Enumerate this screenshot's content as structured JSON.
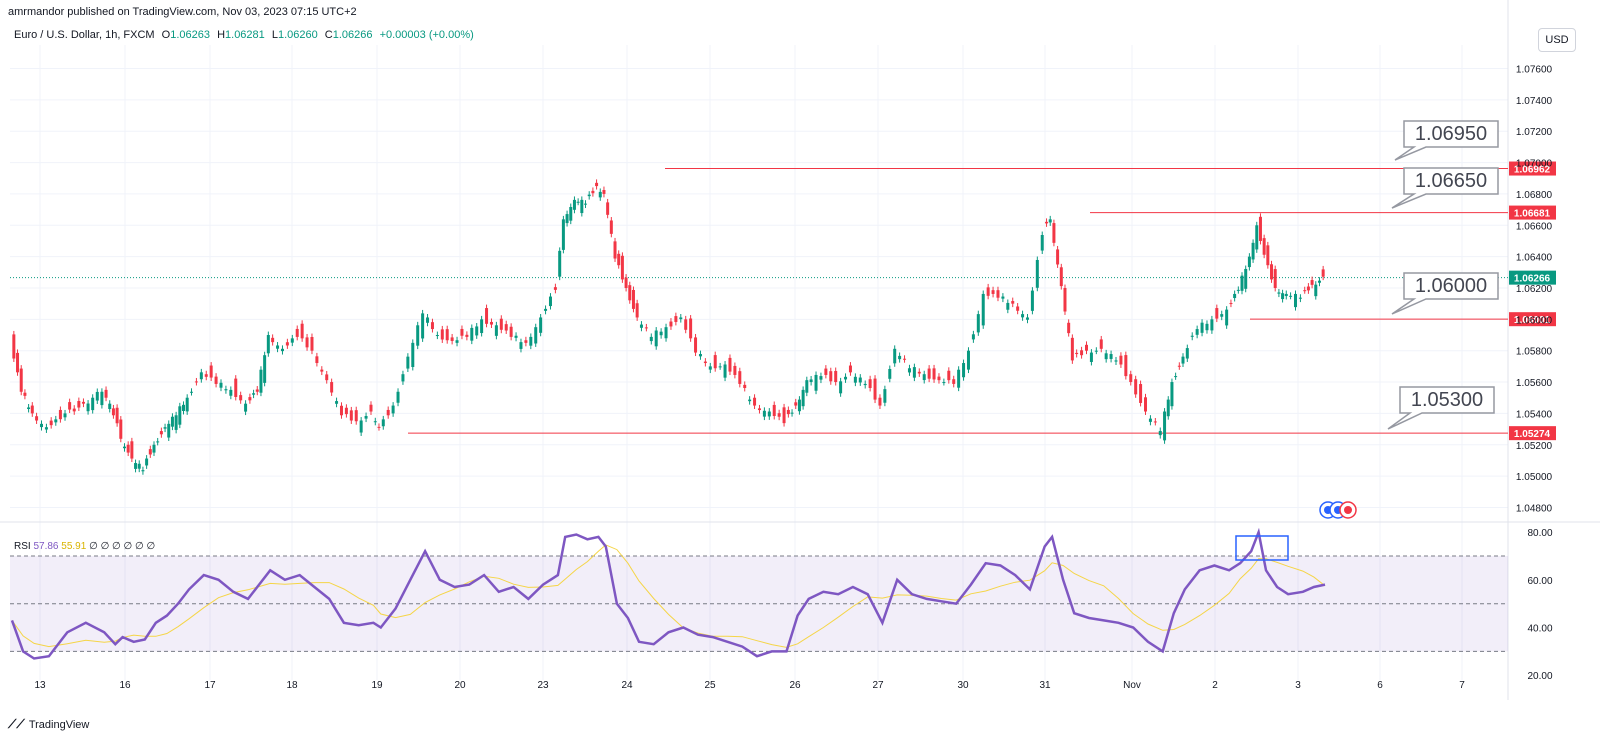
{
  "header": {
    "published": "amrmandor published on TradingView.com, Nov 03, 2023 07:15 UTC+2",
    "symbol": "Euro / U.S. Dollar, 1h, FXCM",
    "open_label": "O",
    "open": "1.06263",
    "high_label": "H",
    "high": "1.06281",
    "low_label": "L",
    "low": "1.06260",
    "close_label": "C",
    "close": "1.06266",
    "change": "+0.00003 (+0.00%)"
  },
  "currency_button": "USD",
  "colors": {
    "up": "#089981",
    "down": "#f23645",
    "rsi": "#7e57c2",
    "rsi_ma": "#f5d547",
    "level": "#f23645",
    "grid": "#f0f3fa"
  },
  "chart_data": [
    {
      "type": "candlestick",
      "symbol": "EURUSD",
      "timeframe": "1h",
      "y_axis": {
        "ticks": [
          "1.07600",
          "1.07400",
          "1.07200",
          "1.07000",
          "1.06800",
          "1.06600",
          "1.06400",
          "1.06200",
          "1.06000",
          "1.05800",
          "1.05600",
          "1.05400",
          "1.05200",
          "1.05000",
          "1.04800"
        ],
        "ylim": [
          1.0472,
          1.0775
        ]
      },
      "x_axis": {
        "ticks": [
          "13",
          "16",
          "17",
          "18",
          "19",
          "20",
          "23",
          "24",
          "25",
          "26",
          "27",
          "30",
          "31",
          "Nov",
          "2",
          "3",
          "6",
          "7"
        ]
      },
      "price_labels": [
        {
          "label": "1.06962",
          "kind": "level"
        },
        {
          "label": "1.06681",
          "kind": "level"
        },
        {
          "label": "1.06266",
          "kind": "current"
        },
        {
          "label": "1.06001",
          "kind": "level"
        },
        {
          "label": "1.05274",
          "kind": "level"
        }
      ],
      "callouts": [
        "1.06950",
        "1.06650",
        "1.06000",
        "1.05300"
      ],
      "series_close": [
        [
          13,
          1.0585
        ],
        [
          13.3,
          1.0555
        ],
        [
          13.6,
          1.054
        ],
        [
          14,
          1.053
        ],
        [
          14.5,
          1.054
        ],
        [
          15,
          1.0545
        ],
        [
          15.5,
          1.0555
        ],
        [
          15.8,
          1.054
        ],
        [
          16,
          1.0525
        ],
        [
          16.3,
          1.051
        ],
        [
          16.6,
          1.0505
        ],
        [
          16.9,
          1.052
        ],
        [
          17.2,
          1.053
        ],
        [
          17.5,
          1.054
        ],
        [
          17.8,
          1.055
        ],
        [
          18.2,
          1.0565
        ],
        [
          18.6,
          1.056
        ],
        [
          19,
          1.0555
        ],
        [
          19.4,
          1.0545
        ],
        [
          19.7,
          1.0555
        ],
        [
          20,
          1.059
        ],
        [
          20.4,
          1.058
        ],
        [
          20.8,
          1.059
        ],
        [
          21.2,
          1.058
        ],
        [
          21.6,
          1.056
        ],
        [
          22,
          1.054
        ],
        [
          22.4,
          1.0535
        ],
        [
          22.8,
          1.054
        ],
        [
          23,
          1.053
        ],
        [
          23.4,
          1.0545
        ],
        [
          23.8,
          1.0575
        ],
        [
          24.2,
          1.0605
        ],
        [
          24.6,
          1.059
        ],
        [
          25,
          1.0585
        ],
        [
          25.4,
          1.059
        ],
        [
          25.8,
          1.06
        ],
        [
          26.2,
          1.0595
        ],
        [
          26.6,
          1.059
        ],
        [
          27,
          1.0585
        ],
        [
          27.4,
          1.06
        ],
        [
          27.8,
          1.062
        ],
        [
          28,
          1.0665
        ],
        [
          28.3,
          1.0675
        ],
        [
          28.6,
          1.0675
        ],
        [
          28.9,
          1.0685
        ],
        [
          29.1,
          1.068
        ],
        [
          29.4,
          1.064
        ],
        [
          29.7,
          1.062
        ],
        [
          30,
          1.06
        ],
        [
          30.4,
          1.059
        ],
        [
          30.8,
          1.0595
        ],
        [
          31.2,
          1.06
        ],
        [
          31.6,
          1.058
        ],
        [
          32,
          1.057
        ],
        [
          32.4,
          1.057
        ],
        [
          32.8,
          1.056
        ],
        [
          33.2,
          1.0545
        ],
        [
          33.6,
          1.054
        ],
        [
          34,
          1.0535
        ],
        [
          34.3,
          1.0545
        ],
        [
          34.6,
          1.056
        ],
        [
          35,
          1.0565
        ],
        [
          35.4,
          1.056
        ],
        [
          35.8,
          1.0565
        ],
        [
          36.2,
          1.056
        ],
        [
          36.6,
          1.0545
        ],
        [
          37,
          1.058
        ],
        [
          37.4,
          1.057
        ],
        [
          37.8,
          1.0565
        ],
        [
          38.2,
          1.056
        ],
        [
          38.6,
          1.056
        ],
        [
          39,
          1.058
        ],
        [
          39.4,
          1.0615
        ],
        [
          39.8,
          1.0615
        ],
        [
          40.2,
          1.061
        ],
        [
          40.6,
          1.06
        ],
        [
          41,
          1.0655
        ],
        [
          41.2,
          1.0665
        ],
        [
          41.5,
          1.062
        ],
        [
          41.8,
          1.0575
        ],
        [
          42.2,
          1.058
        ],
        [
          42.6,
          1.058
        ],
        [
          43,
          1.0575
        ],
        [
          43.4,
          1.056
        ],
        [
          43.8,
          1.054
        ],
        [
          44.2,
          1.053
        ],
        [
          44.5,
          1.056
        ],
        [
          44.8,
          1.0575
        ],
        [
          45.2,
          1.0595
        ],
        [
          45.6,
          1.06
        ],
        [
          46,
          1.0605
        ],
        [
          46.3,
          1.062
        ],
        [
          46.6,
          1.064
        ],
        [
          46.8,
          1.066
        ],
        [
          47,
          1.064
        ],
        [
          47.3,
          1.062
        ],
        [
          47.6,
          1.0615
        ],
        [
          48,
          1.0615
        ],
        [
          48.3,
          1.0622
        ],
        [
          48.6,
          1.0626
        ]
      ],
      "rsi": {
        "label": "RSI",
        "value": "57.86",
        "ma": "55.91",
        "placeholders": "∅ ∅ ∅ ∅ ∅ ∅",
        "ticks": [
          "80.00",
          "60.00",
          "40.00",
          "20.00"
        ],
        "band": [
          30,
          70
        ],
        "mid": 50,
        "ylim": [
          18,
          83
        ],
        "values": [
          [
            13,
            43
          ],
          [
            13.3,
            30
          ],
          [
            13.6,
            27
          ],
          [
            14,
            28
          ],
          [
            14.5,
            38
          ],
          [
            15,
            42
          ],
          [
            15.5,
            38
          ],
          [
            15.8,
            33
          ],
          [
            16,
            36
          ],
          [
            16.3,
            34
          ],
          [
            16.6,
            35
          ],
          [
            16.9,
            42
          ],
          [
            17.2,
            45
          ],
          [
            17.5,
            50
          ],
          [
            17.8,
            56
          ],
          [
            18.2,
            62
          ],
          [
            18.6,
            60
          ],
          [
            19,
            55
          ],
          [
            19.4,
            52
          ],
          [
            19.7,
            58
          ],
          [
            20,
            64
          ],
          [
            20.4,
            60
          ],
          [
            20.8,
            62
          ],
          [
            21.2,
            57
          ],
          [
            21.6,
            52
          ],
          [
            22,
            42
          ],
          [
            22.4,
            41
          ],
          [
            22.8,
            42
          ],
          [
            23,
            40
          ],
          [
            23.4,
            48
          ],
          [
            23.8,
            60
          ],
          [
            24.2,
            72
          ],
          [
            24.6,
            60
          ],
          [
            25,
            57
          ],
          [
            25.4,
            58
          ],
          [
            25.8,
            62
          ],
          [
            26.2,
            55
          ],
          [
            26.6,
            57
          ],
          [
            27,
            52
          ],
          [
            27.4,
            58
          ],
          [
            27.8,
            62
          ],
          [
            28,
            78
          ],
          [
            28.3,
            79
          ],
          [
            28.6,
            77
          ],
          [
            28.9,
            78
          ],
          [
            29.1,
            74
          ],
          [
            29.4,
            50
          ],
          [
            29.7,
            44
          ],
          [
            30,
            34
          ],
          [
            30.4,
            33
          ],
          [
            30.8,
            38
          ],
          [
            31.2,
            40
          ],
          [
            31.6,
            37
          ],
          [
            32,
            36
          ],
          [
            32.4,
            34
          ],
          [
            32.8,
            32
          ],
          [
            33.2,
            28
          ],
          [
            33.6,
            30
          ],
          [
            34,
            30
          ],
          [
            34.3,
            45
          ],
          [
            34.6,
            52
          ],
          [
            35,
            55
          ],
          [
            35.4,
            54
          ],
          [
            35.8,
            57
          ],
          [
            36.2,
            54
          ],
          [
            36.6,
            42
          ],
          [
            37,
            60
          ],
          [
            37.4,
            54
          ],
          [
            37.8,
            52
          ],
          [
            38.2,
            51
          ],
          [
            38.6,
            50
          ],
          [
            39,
            58
          ],
          [
            39.4,
            67
          ],
          [
            39.8,
            66
          ],
          [
            40.2,
            62
          ],
          [
            40.6,
            56
          ],
          [
            41,
            74
          ],
          [
            41.2,
            78
          ],
          [
            41.5,
            60
          ],
          [
            41.8,
            46
          ],
          [
            42.2,
            44
          ],
          [
            42.6,
            43
          ],
          [
            43,
            42
          ],
          [
            43.4,
            40
          ],
          [
            43.8,
            34
          ],
          [
            44.2,
            30
          ],
          [
            44.5,
            46
          ],
          [
            44.8,
            56
          ],
          [
            45.2,
            64
          ],
          [
            45.6,
            66
          ],
          [
            46,
            64
          ],
          [
            46.3,
            67
          ],
          [
            46.6,
            72
          ],
          [
            46.8,
            80
          ],
          [
            47,
            64
          ],
          [
            47.3,
            57
          ],
          [
            47.6,
            54
          ],
          [
            48,
            55
          ],
          [
            48.3,
            57
          ],
          [
            48.6,
            58
          ]
        ]
      }
    }
  ],
  "footer": {
    "brand": "TradingView"
  }
}
